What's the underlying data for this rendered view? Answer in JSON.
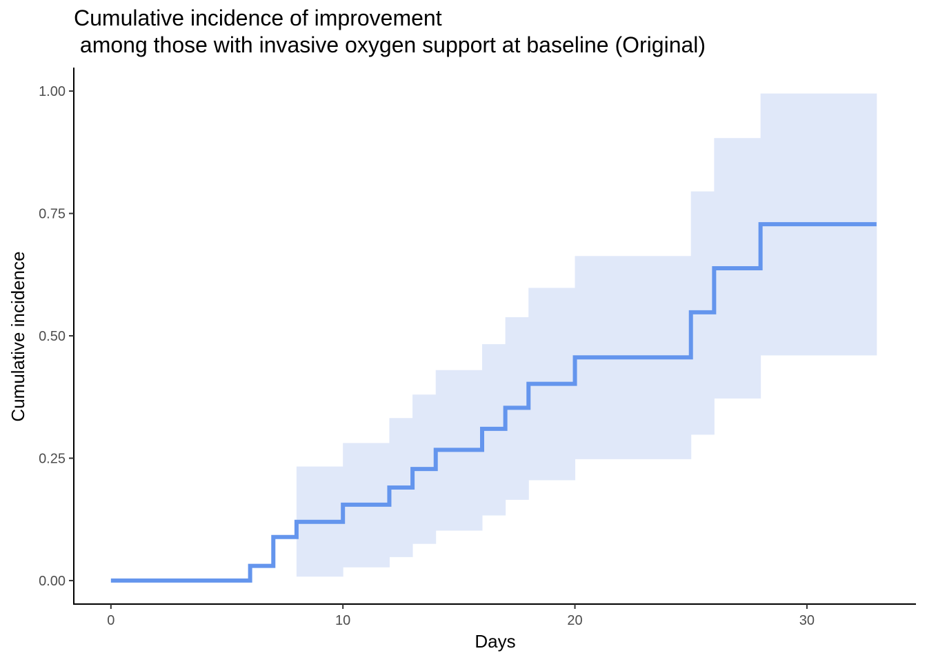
{
  "chart_data": {
    "type": "line",
    "step": true,
    "title": "Cumulative incidence of improvement",
    "subtitle": " among those with invasive oxygen support at baseline (Original)",
    "xlabel": "Days",
    "ylabel": "Cumulative incidence",
    "xlim": [
      -1.6,
      34.7
    ],
    "ylim": [
      -0.048,
      1.048
    ],
    "x_ticks": [
      0,
      10,
      20,
      30
    ],
    "x_tick_labels": [
      "0",
      "10",
      "20",
      "30"
    ],
    "y_ticks": [
      0,
      0.25,
      0.5,
      0.75,
      1.0
    ],
    "y_tick_labels": [
      "0.00",
      "0.25",
      "0.50",
      "0.75",
      "1.00"
    ],
    "grid": false,
    "legend": "none",
    "series": [
      {
        "color": "#6495ED",
        "band_color": "#E0E8F9",
        "steps": [
          {
            "x": 0,
            "y": 0.0
          },
          {
            "x": 6,
            "y": 0.03
          },
          {
            "x": 7,
            "y": 0.089
          },
          {
            "x": 8,
            "y": 0.12,
            "lower": 0.008,
            "upper": 0.233
          },
          {
            "x": 10,
            "y": 0.155,
            "lower": 0.027,
            "upper": 0.281
          },
          {
            "x": 12,
            "y": 0.19,
            "lower": 0.048,
            "upper": 0.332
          },
          {
            "x": 13,
            "y": 0.228,
            "lower": 0.075,
            "upper": 0.38
          },
          {
            "x": 14,
            "y": 0.267,
            "lower": 0.102,
            "upper": 0.43
          },
          {
            "x": 16,
            "y": 0.31,
            "lower": 0.133,
            "upper": 0.483
          },
          {
            "x": 17,
            "y": 0.353,
            "lower": 0.165,
            "upper": 0.538
          },
          {
            "x": 18,
            "y": 0.402,
            "lower": 0.205,
            "upper": 0.598
          },
          {
            "x": 20,
            "y": 0.456,
            "lower": 0.248,
            "upper": 0.663
          },
          {
            "x": 25,
            "y": 0.548,
            "lower": 0.298,
            "upper": 0.795
          },
          {
            "x": 26,
            "y": 0.638,
            "lower": 0.372,
            "upper": 0.904
          },
          {
            "x": 28,
            "y": 0.728,
            "lower": 0.46,
            "upper": 0.995
          }
        ],
        "x_end": 33
      }
    ]
  }
}
